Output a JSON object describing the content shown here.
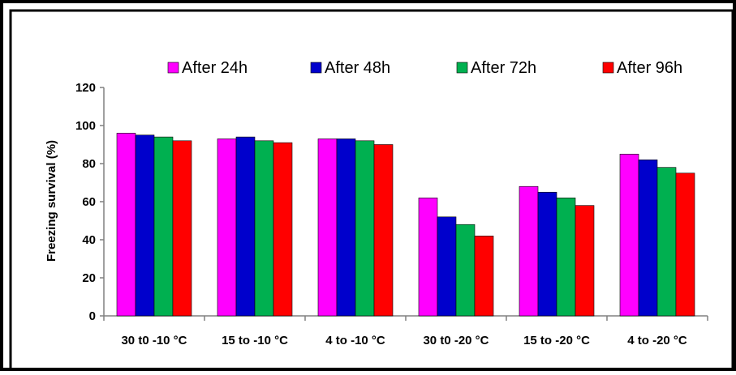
{
  "chart_data": {
    "type": "bar",
    "title": "",
    "xlabel": "",
    "ylabel": "Freezing survival (%)",
    "ylim": [
      0,
      120
    ],
    "yticks": [
      0,
      20,
      40,
      60,
      80,
      100,
      120
    ],
    "grid": false,
    "legend_position": "top",
    "categories": [
      "30 t0 -10 °C",
      "15 to -10 °C",
      "4 to -10 °C",
      "30 t0 -20 °C",
      "15 to -20 °C",
      "4 to -20 °C"
    ],
    "series": [
      {
        "name": "After 24h",
        "color": "#ff00ff",
        "values": [
          96,
          93,
          93,
          62,
          68,
          85
        ]
      },
      {
        "name": "After 48h",
        "color": "#0000cc",
        "values": [
          95,
          94,
          93,
          52,
          65,
          82
        ]
      },
      {
        "name": "After 72h",
        "color": "#00b050",
        "values": [
          94,
          92,
          92,
          48,
          62,
          78
        ]
      },
      {
        "name": "After 96h",
        "color": "#ff0000",
        "values": [
          92,
          91,
          90,
          42,
          58,
          75
        ]
      }
    ]
  }
}
